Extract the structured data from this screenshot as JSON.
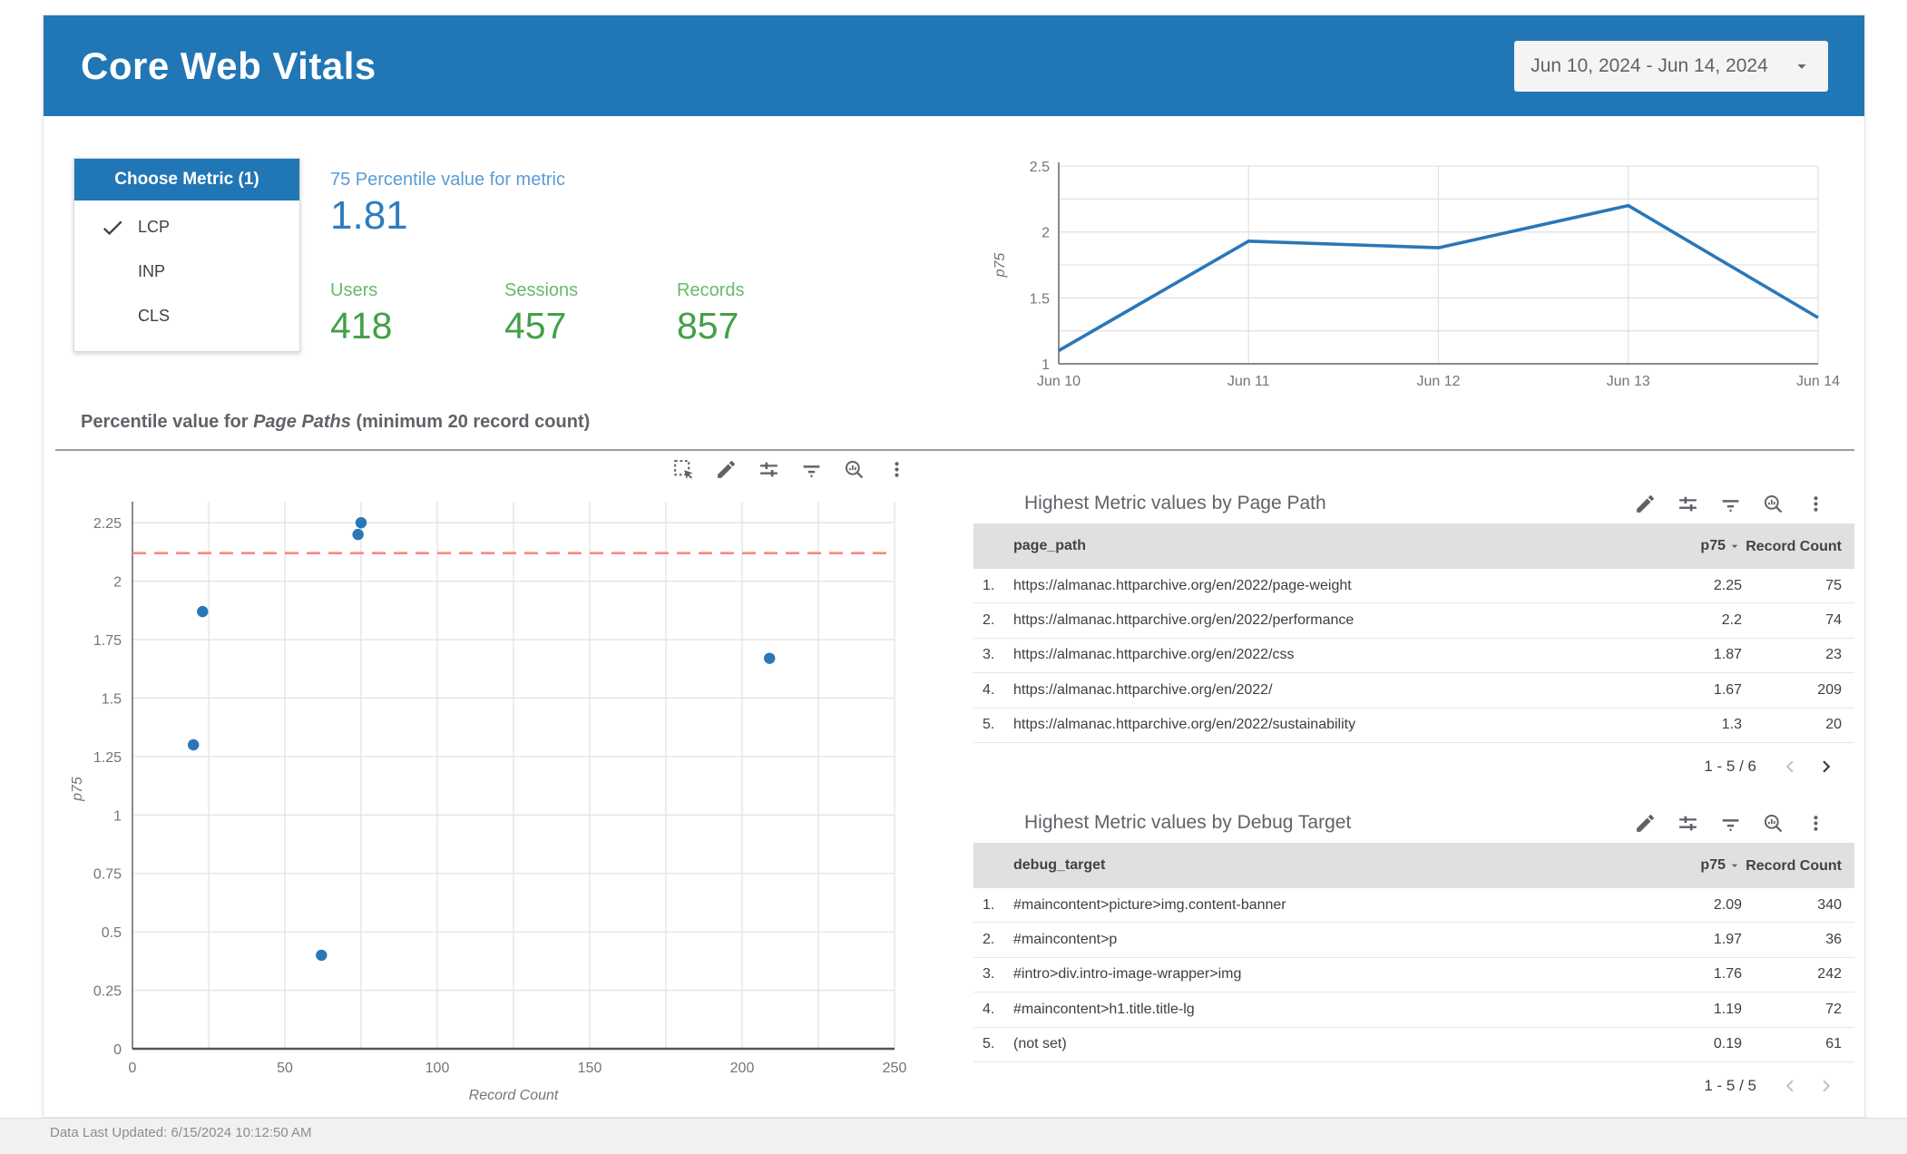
{
  "header": {
    "title": "Core Web Vitals",
    "date_range": "Jun 10, 2024 - Jun 14, 2024"
  },
  "metric_selector": {
    "title": "Choose Metric (1)",
    "options": [
      {
        "label": "LCP",
        "selected": true
      },
      {
        "label": "INP",
        "selected": false
      },
      {
        "label": "CLS",
        "selected": false
      }
    ]
  },
  "scorecards": {
    "percentile": {
      "label": "75 Percentile value for metric",
      "value": "1.81"
    },
    "users": {
      "label": "Users",
      "value": "418"
    },
    "sessions": {
      "label": "Sessions",
      "value": "457"
    },
    "records": {
      "label": "Records",
      "value": "857"
    }
  },
  "section": {
    "title_prefix": "Percentile value for ",
    "title_italic": "Page Paths",
    "title_suffix": " (minimum 20 record count)"
  },
  "toolbars": {
    "chart": [
      "marquee-select",
      "edit",
      "tune",
      "filter",
      "explore",
      "more-vert"
    ],
    "table": [
      "edit",
      "tune",
      "filter",
      "explore",
      "more-vert"
    ]
  },
  "chart_data": [
    {
      "id": "p75-by-date",
      "type": "line",
      "x": [
        "Jun 10",
        "Jun 11",
        "Jun 12",
        "Jun 13",
        "Jun 14"
      ],
      "series": [
        {
          "name": "p75",
          "values": [
            1.1,
            1.93,
            1.88,
            2.2,
            1.35
          ]
        }
      ],
      "ylabel": "p75",
      "ylim": [
        1,
        2.5
      ],
      "yticks": [
        1,
        1.5,
        2,
        2.5
      ],
      "y_grid_step": 0.25,
      "grid": true,
      "legend": "none"
    },
    {
      "id": "p75-by-record-count",
      "type": "scatter",
      "xlabel": "Record Count",
      "ylabel": "p75",
      "xlim": [
        0,
        250
      ],
      "ylim": [
        0,
        2.34
      ],
      "xticks": [
        0,
        50,
        100,
        150,
        200,
        250
      ],
      "x_grid_step": 25,
      "yticks": [
        0,
        0.25,
        0.5,
        0.75,
        1,
        1.25,
        1.5,
        1.75,
        2,
        2.25
      ],
      "y_grid_step": 0.25,
      "grid": true,
      "points": [
        {
          "x": 75,
          "y": 2.25
        },
        {
          "x": 74,
          "y": 2.2
        },
        {
          "x": 23,
          "y": 1.87
        },
        {
          "x": 209,
          "y": 1.67
        },
        {
          "x": 20,
          "y": 1.3
        },
        {
          "x": 62,
          "y": 0.4
        }
      ],
      "reference_line": {
        "y": 2.12,
        "style": "dashed"
      }
    }
  ],
  "tables": [
    {
      "title": "Highest Metric values by Page Path",
      "columns": [
        "page_path",
        "p75",
        "Record Count"
      ],
      "rows": [
        [
          "https://almanac.httparchive.org/en/2022/page-weight",
          "2.25",
          "75"
        ],
        [
          "https://almanac.httparchive.org/en/2022/performance",
          "2.2",
          "74"
        ],
        [
          "https://almanac.httparchive.org/en/2022/css",
          "1.87",
          "23"
        ],
        [
          "https://almanac.httparchive.org/en/2022/",
          "1.67",
          "209"
        ],
        [
          "https://almanac.httparchive.org/en/2022/sustainability",
          "1.3",
          "20"
        ]
      ],
      "pagination": {
        "label": "1 - 5 / 6",
        "prev_enabled": false,
        "next_enabled": true
      }
    },
    {
      "title": "Highest Metric values by Debug Target",
      "columns": [
        "debug_target",
        "p75",
        "Record Count"
      ],
      "rows": [
        [
          "#maincontent>picture>img.content-banner",
          "2.09",
          "340"
        ],
        [
          "#maincontent>p",
          "1.97",
          "36"
        ],
        [
          "#intro>div.intro-image-wrapper>img",
          "1.76",
          "242"
        ],
        [
          "#maincontent>h1.title.title-lg",
          "1.19",
          "72"
        ],
        [
          "(not set)",
          "0.19",
          "61"
        ]
      ],
      "pagination": {
        "label": "1 - 5 / 5",
        "prev_enabled": false,
        "next_enabled": false
      }
    }
  ],
  "footer": {
    "text": "Data Last Updated: 6/15/2024 10:12:50 AM"
  },
  "colors": {
    "header_bg": "#2176b5",
    "score_label_blue": "#5b9bd5",
    "score_value_blue": "#2e7cbe",
    "kpi_label_green": "#66bb6a",
    "kpi_value_green": "#43a047",
    "line": "#2a77b8",
    "point": "#2a77b8",
    "reference_line": "#f58a80",
    "grid": "#e3e3e3",
    "axis": "#8a8a8a",
    "tick_text": "#757575",
    "table_header_bg": "#e0e0e0"
  }
}
